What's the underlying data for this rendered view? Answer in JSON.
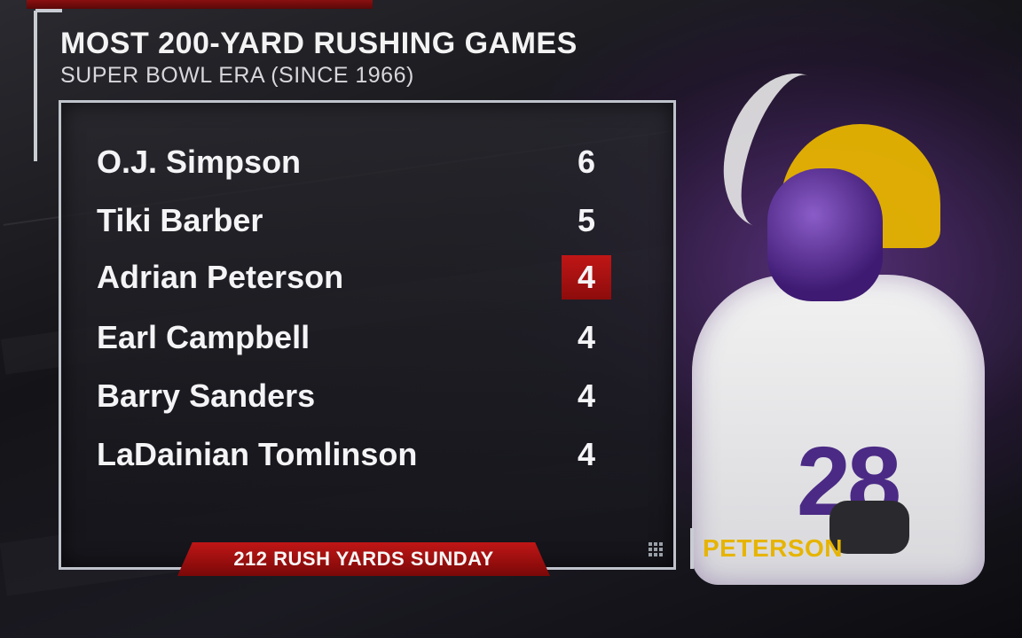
{
  "header": {
    "title": "MOST 200-YARD RUSHING GAMES",
    "subtitle": "SUPER BOWL ERA (SINCE 1966)"
  },
  "leaders": [
    {
      "name": "O.J. Simpson",
      "value": "6",
      "highlight": false
    },
    {
      "name": "Tiki Barber",
      "value": "5",
      "highlight": false
    },
    {
      "name": "Adrian Peterson",
      "value": "4",
      "highlight": true
    },
    {
      "name": "Earl Campbell",
      "value": "4",
      "highlight": false
    },
    {
      "name": "Barry Sanders",
      "value": "4",
      "highlight": false
    },
    {
      "name": "LaDainian Tomlinson",
      "value": "4",
      "highlight": false
    }
  ],
  "footer": {
    "banner": "212 RUSH YARDS SUNDAY"
  },
  "player": {
    "name_tag": "PETERSON",
    "jersey_number": "28"
  },
  "colors": {
    "highlight_red": "#c01616",
    "gold": "#e6b400",
    "vikings_purple": "#4b2a85"
  }
}
